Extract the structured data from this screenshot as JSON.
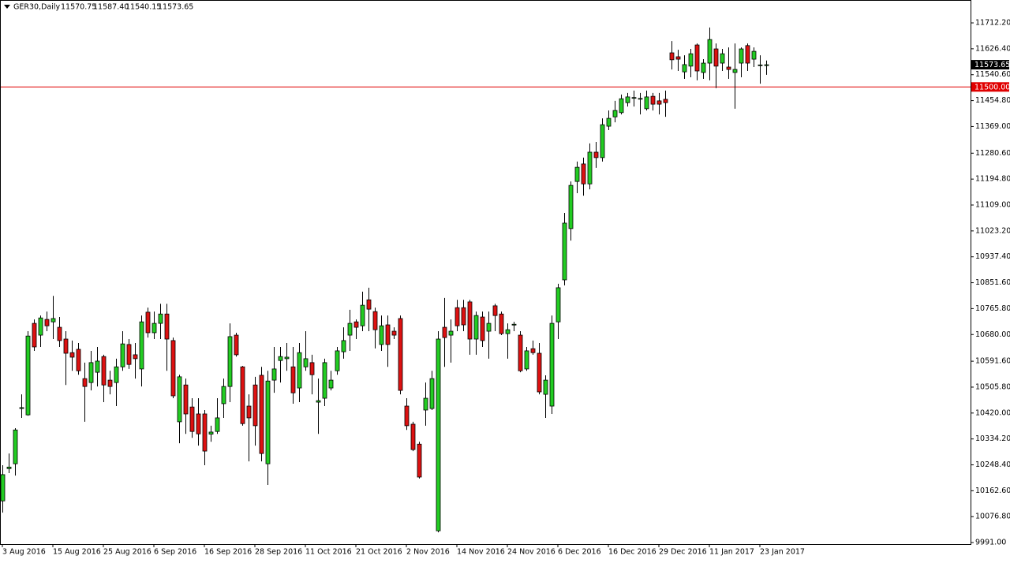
{
  "chart_data": {
    "type": "candlestick",
    "title": "GER30,Daily",
    "header_values": [
      "11570.75",
      "11587.40",
      "11540.15",
      "11573.65"
    ],
    "up_color": "#22cc22",
    "down_color": "#dd1111",
    "categories": [
      "3 Aug 2016",
      null,
      null,
      null,
      null,
      null,
      null,
      null,
      "15 Aug 2016",
      null,
      null,
      null,
      null,
      null,
      null,
      null,
      "25 Aug 2016",
      null,
      null,
      null,
      null,
      null,
      null,
      null,
      "6 Sep 2016",
      null,
      null,
      null,
      null,
      null,
      null,
      null,
      "16 Sep 2016",
      null,
      null,
      null,
      null,
      null,
      null,
      null,
      "28 Sep 2016",
      null,
      null,
      null,
      null,
      null,
      null,
      null,
      "11 Oct 2016",
      null,
      null,
      null,
      null,
      null,
      null,
      null,
      "21 Oct 2016",
      null,
      null,
      null,
      null,
      null,
      null,
      null,
      "2 Nov 2016",
      null,
      null,
      null,
      null,
      null,
      null,
      null,
      "14 Nov 2016",
      null,
      null,
      null,
      null,
      null,
      null,
      null,
      "24 Nov 2016",
      null,
      null,
      null,
      null,
      null,
      null,
      null,
      "6 Dec 2016",
      null,
      null,
      null,
      null,
      null,
      null,
      null,
      "16 Dec 2016",
      null,
      null,
      null,
      null,
      null,
      null,
      null,
      "29 Dec 2016",
      null,
      null,
      null,
      null,
      null,
      null,
      null,
      "11 Jan 2017",
      null,
      null,
      null,
      null,
      null,
      null,
      null,
      "23 Jan 2017",
      null
    ],
    "open": [
      10129,
      10236,
      10252,
      10435,
      10414,
      10717,
      10678,
      10730,
      10722,
      10704,
      10665,
      10620,
      10631,
      10534,
      10521,
      10555,
      10607,
      10529,
      10521,
      10573,
      10647,
      10613,
      10566,
      10754,
      10686,
      10717,
      10748,
      10660,
      10391,
      10513,
      10440,
      10417,
      10417,
      10350,
      10359,
      10451,
      10508,
      10678,
      10573,
      10443,
      10513,
      10545,
      10252,
      10529,
      10594,
      10600,
      10573,
      10503,
      10573,
      10587,
      10456,
      10469,
      10503,
      10560,
      10623,
      10678,
      10722,
      10709,
      10795,
      10756,
      10647,
      10712,
      10691,
      10733,
      10443,
      10383,
      10317,
      10430,
      10435,
      10030,
      10704,
      10678,
      10769,
      10769,
      10788,
      10665,
      10738,
      10691,
      10775,
      10748,
      10683,
      10712,
      10678,
      10566,
      10633,
      10618,
      10482,
      10443,
      10722,
      10861,
      11031,
      11187,
      11245,
      11179,
      11284,
      11266,
      11370,
      11401,
      11415,
      11448,
      11463,
      11461,
      11428,
      11469,
      11454,
      11459,
      11613,
      11600,
      11550,
      11569,
      11639,
      11548,
      11579,
      11626,
      11579,
      11566,
      11548,
      11579,
      11637,
      11592,
      11571,
      11570.75
    ],
    "high": [
      10247,
      10286,
      10370,
      10482,
      10691,
      10730,
      10743,
      10756,
      10808,
      10738,
      10691,
      10660,
      10652,
      10587,
      10626,
      10639,
      10613,
      10560,
      10600,
      10691,
      10665,
      10652,
      10743,
      10769,
      10756,
      10782,
      10782,
      10670,
      10547,
      10534,
      10469,
      10469,
      10430,
      10378,
      10469,
      10534,
      10717,
      10686,
      10576,
      10482,
      10540,
      10573,
      10560,
      10639,
      10639,
      10652,
      10639,
      10652,
      10691,
      10613,
      10534,
      10600,
      10560,
      10639,
      10704,
      10762,
      10730,
      10822,
      10835,
      10769,
      10743,
      10743,
      10704,
      10743,
      10469,
      10391,
      10325,
      10521,
      10560,
      10691,
      10801,
      10730,
      10795,
      10795,
      10795,
      10756,
      10756,
      10756,
      10782,
      10756,
      10717,
      10722,
      10691,
      10639,
      10660,
      10652,
      10545,
      10743,
      10848,
      11083,
      11187,
      11253,
      11266,
      11313,
      11318,
      11396,
      11422,
      11454,
      11475,
      11480,
      11488,
      11480,
      11488,
      11480,
      11480,
      11488,
      11652,
      11623,
      11605,
      11626,
      11644,
      11592,
      11697,
      11644,
      11626,
      11631,
      11644,
      11631,
      11644,
      11631,
      11605,
      11587.4
    ],
    "low": [
      10090,
      10221,
      10213,
      10404,
      10411,
      10626,
      10639,
      10691,
      10665,
      10639,
      10513,
      10560,
      10547,
      10391,
      10495,
      10508,
      10456,
      10482,
      10443,
      10560,
      10566,
      10534,
      10508,
      10670,
      10665,
      10665,
      10560,
      10469,
      10320,
      10351,
      10338,
      10312,
      10247,
      10325,
      10351,
      10404,
      10456,
      10607,
      10378,
      10260,
      10312,
      10260,
      10182,
      10487,
      10521,
      10560,
      10451,
      10456,
      10560,
      10482,
      10351,
      10443,
      10495,
      10547,
      10600,
      10626,
      10665,
      10691,
      10691,
      10634,
      10626,
      10573,
      10665,
      10482,
      10364,
      10294,
      10203,
      10378,
      10430,
      10025,
      10573,
      10587,
      10691,
      10691,
      10613,
      10613,
      10639,
      10600,
      10691,
      10678,
      10600,
      10691,
      10555,
      10560,
      10613,
      10482,
      10404,
      10417,
      10665,
      10843,
      10991,
      11148,
      11140,
      11161,
      11232,
      11253,
      11357,
      11383,
      11409,
      11435,
      11435,
      11409,
      11422,
      11422,
      11409,
      11401,
      11558,
      11553,
      11527,
      11532,
      11522,
      11527,
      11522,
      11496,
      11553,
      11527,
      11428,
      11532,
      11553,
      11566,
      11511,
      11540.15
    ],
    "close": [
      10216,
      10241,
      10364,
      10438,
      10675,
      10639,
      10735,
      10709,
      10733,
      10660,
      10618,
      10605,
      10560,
      10508,
      10587,
      10592,
      10513,
      10508,
      10573,
      10649,
      10581,
      10600,
      10722,
      10686,
      10717,
      10748,
      10665,
      10477,
      10540,
      10417,
      10359,
      10351,
      10294,
      10357,
      10404,
      10508,
      10673,
      10613,
      10385,
      10404,
      10378,
      10286,
      10526,
      10566,
      10607,
      10605,
      10487,
      10620,
      10600,
      10547,
      10461,
      10587,
      10529,
      10626,
      10660,
      10717,
      10704,
      10777,
      10764,
      10696,
      10709,
      10647,
      10678,
      10495,
      10378,
      10299,
      10208,
      10469,
      10534,
      10665,
      10670,
      10691,
      10709,
      10712,
      10665,
      10743,
      10660,
      10717,
      10743,
      10683,
      10696,
      10714,
      10560,
      10626,
      10620,
      10490,
      10529,
      10717,
      10835,
      11049,
      11174,
      11234,
      11179,
      11284,
      11266,
      11375,
      11396,
      11422,
      11461,
      11467,
      11465,
      11462,
      11467,
      11443,
      11443,
      11448,
      11590,
      11592,
      11574,
      11610,
      11553,
      11579,
      11657,
      11569,
      11610,
      11558,
      11558,
      11626,
      11579,
      11618,
      11573,
      11573.65
    ],
    "ylim": [
      9986,
      11788
    ],
    "yticks": [
      {
        "value": 11712.2,
        "label": "11712.20"
      },
      {
        "value": 11626.4,
        "label": "11626.40"
      },
      {
        "value": 11540.6,
        "label": "11540.60"
      },
      {
        "value": 11454.8,
        "label": "11454.80"
      },
      {
        "value": 11369,
        "label": "11369.00"
      },
      {
        "value": 11280.6,
        "label": "11280.60"
      },
      {
        "value": 11194.8,
        "label": "11194.80"
      },
      {
        "value": 11109,
        "label": "11109.00"
      },
      {
        "value": 11023.2,
        "label": "11023.20"
      },
      {
        "value": 10937.4,
        "label": "10937.40"
      },
      {
        "value": 10851.6,
        "label": "10851.60"
      },
      {
        "value": 10765.8,
        "label": "10765.80"
      },
      {
        "value": 10680,
        "label": "10680.00"
      },
      {
        "value": 10591.6,
        "label": "10591.60"
      },
      {
        "value": 10505.8,
        "label": "10505.80"
      },
      {
        "value": 10420,
        "label": "10420.00"
      },
      {
        "value": 10334.2,
        "label": "10334.20"
      },
      {
        "value": 10248.4,
        "label": "10248.40"
      },
      {
        "value": 10162.6,
        "label": "10162.60"
      },
      {
        "value": 10076.8,
        "label": "10076.80"
      },
      {
        "value": 9991,
        "label": "9991.00"
      }
    ],
    "current_price": {
      "value": 11573.65,
      "label": "11573.65"
    },
    "hline": {
      "value": 11500,
      "label": "11500.00",
      "color": "#e00000"
    },
    "grid": false
  }
}
